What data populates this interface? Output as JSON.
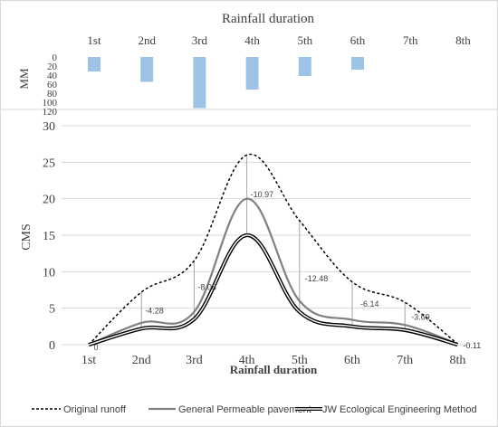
{
  "chart_data": [
    {
      "type": "bar",
      "title": "Rainfall duration",
      "ylabel": "MM",
      "categories": [
        "1st",
        "2nd",
        "3rd",
        "4th",
        "5th",
        "6th",
        "7th",
        "8th"
      ],
      "values": [
        32,
        55,
        113,
        72,
        42,
        28,
        0,
        0
      ],
      "ylim": [
        0,
        120
      ],
      "yticks": [
        "0",
        "20",
        "40",
        "60",
        "80",
        "100",
        "120"
      ],
      "inverted": true,
      "color": "#9dc3e6"
    },
    {
      "type": "line",
      "xlabel": "Rainfall duration",
      "ylabel": "CMS",
      "categories": [
        "1st",
        "2nd",
        "3rd",
        "4th",
        "5th",
        "6th",
        "7th",
        "8th"
      ],
      "ylim": [
        0,
        30
      ],
      "yticks": [
        "0",
        "5",
        "10",
        "15",
        "20",
        "25",
        "30"
      ],
      "series": [
        {
          "name": "Original runoff",
          "values": [
            0,
            7.2,
            11.5,
            26,
            17,
            8.6,
            5.8,
            0.1
          ],
          "color": "#000000",
          "style": "dashed"
        },
        {
          "name": "General Permeable pavement",
          "values": [
            0,
            3.0,
            4.5,
            20,
            6.0,
            3.4,
            2.7,
            0.1
          ],
          "color": "#808080",
          "style": "solid"
        },
        {
          "name": "JW Ecological Engineering Method",
          "values": [
            0,
            2.2,
            3.5,
            15,
            4.5,
            2.5,
            2.0,
            0.0
          ],
          "color": "#000000",
          "style": "double"
        }
      ],
      "annotations": [
        "0",
        "-4.28",
        "-8.08",
        "-10.97",
        "-12.48",
        "-6.14",
        "-3.69",
        "-0.11"
      ]
    }
  ]
}
